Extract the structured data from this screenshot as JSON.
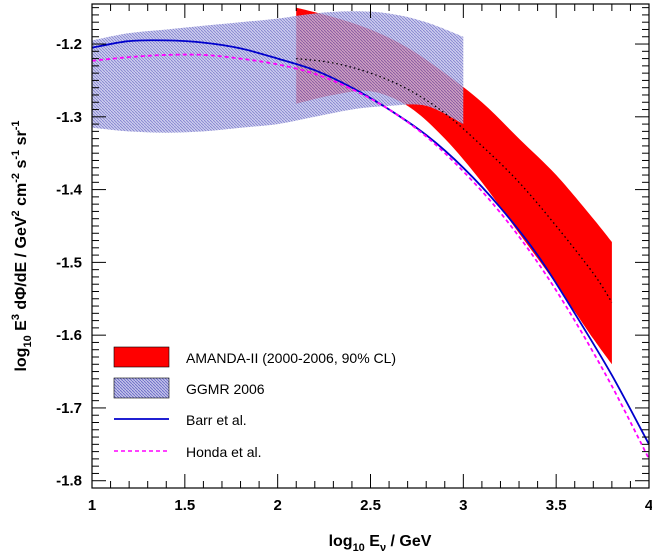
{
  "chart_data": {
    "type": "line",
    "xlabel": {
      "prefix": "log",
      "sub1": "10",
      "mid": " E",
      "sub2": "ν",
      "suffix": " / GeV"
    },
    "ylabel": {
      "prefix": "log",
      "sub1": "10",
      "p1": " E",
      "sup1": "3",
      "p2": " dΦ/dE / GeV",
      "sup2": "2",
      "p3": " cm",
      "sup3": "-2",
      "p4": " s",
      "sup4": "-1",
      "p5": " sr",
      "sup5": "-1"
    },
    "xlim": [
      1,
      4
    ],
    "ylim": [
      -1.81,
      -1.145
    ],
    "x_ticks": [
      1,
      1.5,
      2,
      2.5,
      3,
      3.5,
      4
    ],
    "x_tick_labels": [
      "1",
      "1.5",
      "2",
      "2.5",
      "3",
      "3.5",
      "4"
    ],
    "y_ticks": [
      -1.8,
      -1.7,
      -1.6,
      -1.5,
      -1.4,
      -1.3,
      -1.2
    ],
    "y_tick_labels": [
      "-1.8",
      "-1.7",
      "-1.6",
      "-1.5",
      "-1.4",
      "-1.3",
      "-1.2"
    ],
    "grid": false,
    "legend_position": "bottom-left",
    "bands": [
      {
        "name": "GGMR 2006",
        "color": "#8080d0",
        "hatched": true,
        "x": [
          1.0,
          1.2,
          1.4,
          1.6,
          1.8,
          2.0,
          2.2,
          2.4,
          2.6,
          2.8,
          3.0
        ],
        "upper": [
          -1.195,
          -1.185,
          -1.18,
          -1.175,
          -1.17,
          -1.165,
          -1.158,
          -1.155,
          -1.158,
          -1.17,
          -1.19
        ],
        "lower": [
          -1.315,
          -1.32,
          -1.322,
          -1.32,
          -1.315,
          -1.31,
          -1.3,
          -1.29,
          -1.285,
          -1.285,
          -1.31
        ]
      },
      {
        "name": "AMANDA-II (2000-2006, 90% CL)",
        "color": "#ff0000",
        "hatched": false,
        "x": [
          2.1,
          2.3,
          2.5,
          2.7,
          2.9,
          3.1,
          3.3,
          3.5,
          3.7,
          3.8
        ],
        "upper": [
          -1.15,
          -1.163,
          -1.18,
          -1.205,
          -1.24,
          -1.28,
          -1.33,
          -1.38,
          -1.44,
          -1.472
        ],
        "lower": [
          -1.282,
          -1.27,
          -1.265,
          -1.285,
          -1.33,
          -1.39,
          -1.46,
          -1.53,
          -1.605,
          -1.64
        ]
      }
    ],
    "series": [
      {
        "name": "Barr et al.",
        "color": "#0000cc",
        "dash": "",
        "x": [
          1.0,
          1.2,
          1.4,
          1.6,
          1.8,
          2.0,
          2.2,
          2.4,
          2.6,
          2.8,
          3.0,
          3.2,
          3.4,
          3.6,
          3.8,
          4.0
        ],
        "y": [
          -1.205,
          -1.196,
          -1.195,
          -1.198,
          -1.206,
          -1.22,
          -1.236,
          -1.26,
          -1.29,
          -1.325,
          -1.37,
          -1.425,
          -1.49,
          -1.57,
          -1.655,
          -1.75
        ]
      },
      {
        "name": "Honda et al.",
        "color": "#ff00ff",
        "dash": "4,3",
        "x": [
          1.0,
          1.2,
          1.4,
          1.6,
          1.8,
          2.0,
          2.2,
          2.4,
          2.6,
          2.8,
          3.0,
          3.2,
          3.4,
          3.6,
          3.8,
          4.0
        ],
        "y": [
          -1.223,
          -1.218,
          -1.215,
          -1.215,
          -1.22,
          -1.228,
          -1.241,
          -1.262,
          -1.29,
          -1.327,
          -1.375,
          -1.432,
          -1.5,
          -1.58,
          -1.67,
          -1.77
        ]
      },
      {
        "name": "",
        "color": "#000000",
        "dash": "1.5,3",
        "x": [
          2.1,
          2.3,
          2.5,
          2.7,
          2.9,
          3.1,
          3.3,
          3.5,
          3.7,
          3.8
        ],
        "y": [
          -1.22,
          -1.226,
          -1.24,
          -1.262,
          -1.295,
          -1.34,
          -1.39,
          -1.45,
          -1.515,
          -1.555
        ]
      }
    ]
  }
}
